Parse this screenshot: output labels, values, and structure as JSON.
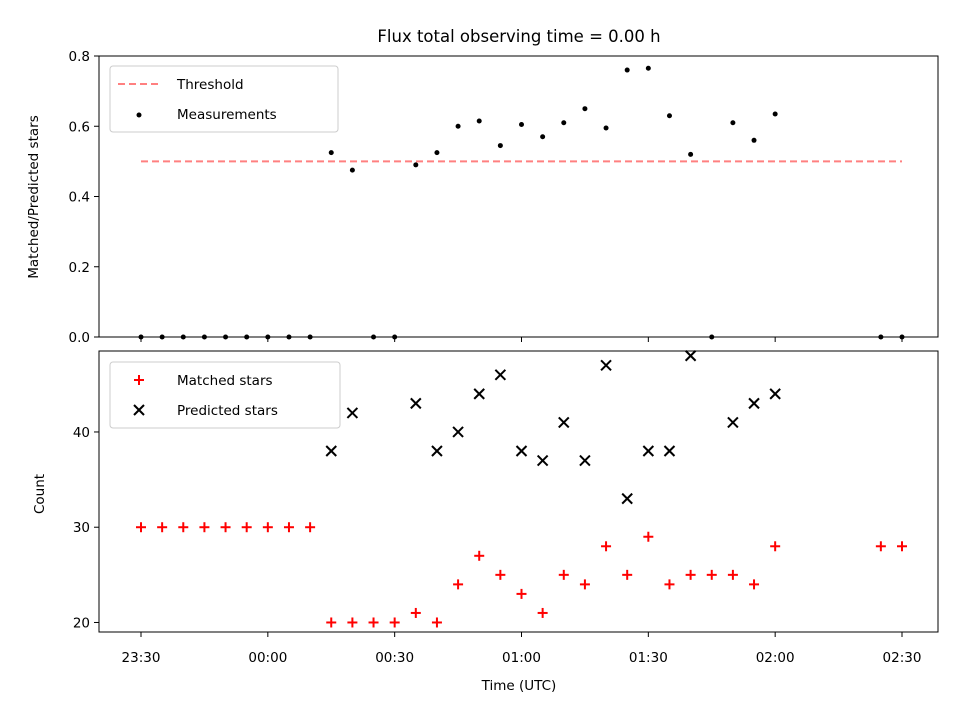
{
  "figure": {
    "title": "Flux total observing time = 0.00 h",
    "xlabel": "Time (UTC)"
  },
  "chart_data": [
    {
      "type": "scatter",
      "title": "Flux total observing time = 0.00 h",
      "ylabel": "Matched/Predicted stars",
      "xlabel": "",
      "ylim": [
        0,
        0.8
      ],
      "yticks": [
        "0.0",
        "0.2",
        "0.4",
        "0.6",
        "0.8"
      ],
      "legend_position": "top-left",
      "threshold": {
        "name": "Threshold",
        "value": 0.5,
        "x_range": [
          "23:30",
          "02:30"
        ],
        "color": "#ff8080",
        "style": "dashed"
      },
      "series": [
        {
          "name": "Measurements",
          "color": "#000000",
          "marker": "dot",
          "x": [
            "23:30",
            "23:35",
            "23:40",
            "23:45",
            "23:50",
            "23:55",
            "00:00",
            "00:05",
            "00:10",
            "00:15",
            "00:20",
            "00:25",
            "00:30",
            "00:35",
            "00:40",
            "00:45",
            "00:50",
            "00:55",
            "01:00",
            "01:05",
            "01:10",
            "01:15",
            "01:20",
            "01:25",
            "01:30",
            "01:35",
            "01:40",
            "01:45",
            "01:50",
            "01:55",
            "02:00",
            "02:25",
            "02:30"
          ],
          "y": [
            0,
            0,
            0,
            0,
            0,
            0,
            0,
            0,
            0,
            0.525,
            0.475,
            0,
            0,
            0.49,
            0.525,
            0.6,
            0.615,
            0.545,
            0.605,
            0.57,
            0.61,
            0.65,
            0.595,
            0.76,
            0.765,
            0.63,
            0.52,
            0,
            0.61,
            0.56,
            0.635,
            0,
            0
          ]
        }
      ]
    },
    {
      "type": "scatter",
      "ylabel": "Count",
      "xlabel": "Time (UTC)",
      "ylim": [
        19,
        48.5
      ],
      "yticks": [
        "20",
        "30",
        "40"
      ],
      "xticks": [
        "23:30",
        "00:00",
        "00:30",
        "01:00",
        "01:30",
        "02:00",
        "02:30"
      ],
      "legend_position": "top-left",
      "series": [
        {
          "name": "Matched stars",
          "color": "#ff0000",
          "marker": "plus",
          "x": [
            "23:30",
            "23:35",
            "23:40",
            "23:45",
            "23:50",
            "23:55",
            "00:00",
            "00:05",
            "00:10",
            "00:15",
            "00:20",
            "00:25",
            "00:30",
            "00:35",
            "00:40",
            "00:45",
            "00:50",
            "00:55",
            "01:00",
            "01:05",
            "01:10",
            "01:15",
            "01:20",
            "01:25",
            "01:30",
            "01:35",
            "01:40",
            "01:45",
            "01:50",
            "01:55",
            "02:00",
            "02:25",
            "02:30"
          ],
          "y": [
            30,
            30,
            30,
            30,
            30,
            30,
            30,
            30,
            30,
            20,
            20,
            20,
            20,
            21,
            20,
            24,
            27,
            25,
            23,
            21,
            25,
            24,
            28,
            25,
            29,
            24,
            25,
            25,
            25,
            24,
            28,
            28,
            28
          ]
        },
        {
          "name": "Predicted stars",
          "color": "#000000",
          "marker": "x",
          "x": [
            "00:15",
            "00:20",
            "00:35",
            "00:40",
            "00:45",
            "00:50",
            "00:55",
            "01:00",
            "01:05",
            "01:10",
            "01:15",
            "01:20",
            "01:25",
            "01:30",
            "01:35",
            "01:40",
            "01:50",
            "01:55",
            "02:00"
          ],
          "y": [
            38,
            42,
            43,
            38,
            40,
            44,
            46,
            38,
            37,
            41,
            37,
            47,
            33,
            38,
            38,
            48,
            41,
            43,
            44
          ]
        }
      ]
    }
  ]
}
